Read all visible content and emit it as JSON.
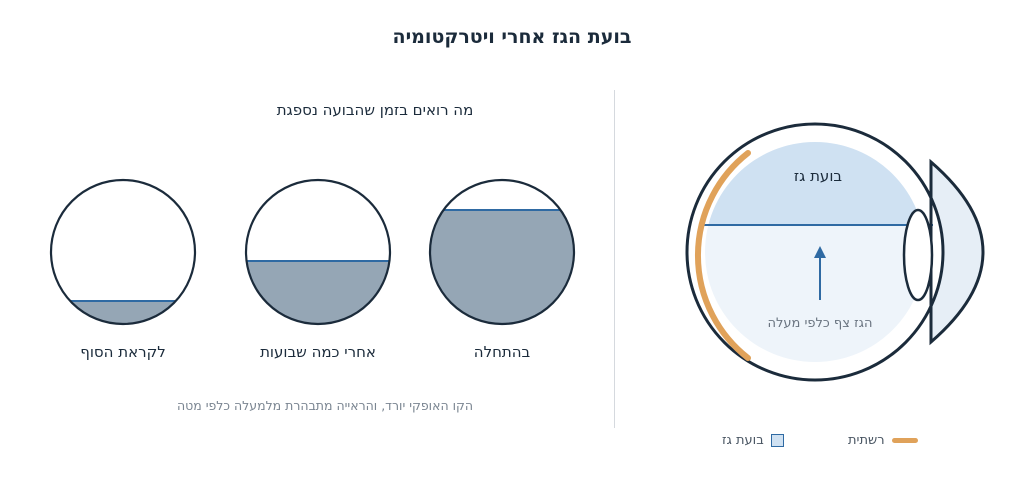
{
  "title": "בועת הגז אחרי ויטרקטומיה",
  "right_panel": {
    "bubble_label": "בועת גז",
    "float_label": "הגז צף כלפי מעלה"
  },
  "left_panel": {
    "subtitle": "מה רואים בזמן שהבועה נספגת",
    "stages": [
      {
        "label": "בהתחלה",
        "fill_fraction": 0.8
      },
      {
        "label": "אחרי כמה שבועות",
        "fill_fraction": 0.45
      },
      {
        "label": "לקראת הסוף",
        "fill_fraction": 0.15
      }
    ],
    "caption": "הקו האופקי יורד, והראייה מתבהרת מלמעלה כלפי מטה"
  },
  "legend": {
    "gas_bubble": "בועת גז",
    "retina": "רשתית"
  },
  "colors": {
    "gas": "#cfe1f2",
    "level_line": "#2f6aa3",
    "retina": "#e0a25a",
    "fluid_view": "#95a6b5",
    "outline": "#1b2b3b"
  }
}
